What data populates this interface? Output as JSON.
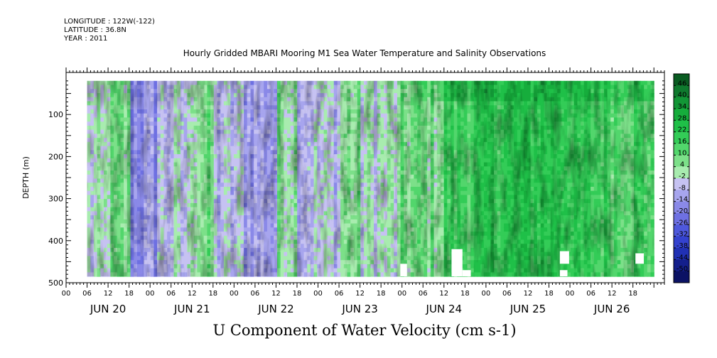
{
  "header": {
    "longitude": "LONGITUDE : 122W(-122)",
    "latitude": "LATITUDE : 36.8N",
    "year": "YEAR : 2011",
    "title": "Hourly Gridded MBARI Mooring M1 Sea Water Temperature and Salinity Observations"
  },
  "chart_data": {
    "type": "heatmap",
    "title": "U Component of Water Velocity (cm s-1)",
    "ylabel": "DEPTH (m)",
    "xlabel": "",
    "ylim": [
      500,
      0
    ],
    "y_ticks": [
      "100",
      "200",
      "300",
      "400",
      "500"
    ],
    "x_hour_ticks": [
      "00",
      "06",
      "12",
      "18",
      "00",
      "06",
      "12",
      "18",
      "00",
      "06",
      "12",
      "18",
      "00",
      "06",
      "12",
      "18",
      "00",
      "06",
      "12",
      "18",
      "00",
      "06",
      "12",
      "18",
      "00",
      "06",
      "12",
      "18"
    ],
    "x_day_labels": [
      "JUN 20",
      "JUN 21",
      "JUN 22",
      "JUN 23",
      "JUN 24",
      "JUN 25",
      "JUN 26"
    ],
    "colorbar_labels": [
      "46",
      "40",
      "34",
      "28",
      "22",
      "16",
      "10",
      "4",
      "-2",
      "-8",
      "-14",
      "-20",
      "-26",
      "-32",
      "-38",
      "-44",
      "-50"
    ],
    "colorbar_colors": [
      "#0a5c22",
      "#0f7a2e",
      "#129636",
      "#16ad3c",
      "#1fc048",
      "#33cc57",
      "#52d66c",
      "#7ce089",
      "#a8ecaf",
      "#c6c2f2",
      "#a7a5ee",
      "#8a89e8",
      "#6e70e2",
      "#4e58dc",
      "#3442cf",
      "#2030b4",
      "#141f8c",
      "#0b1264"
    ],
    "data_range_days": [
      19.75,
      26.5
    ],
    "depth_range_m": [
      20,
      485
    ],
    "day_band_means": [
      {
        "start_day": 19.75,
        "end_day": 20.0,
        "mean_u": -6
      },
      {
        "start_day": 20.0,
        "end_day": 20.25,
        "mean_u": 2
      },
      {
        "start_day": 20.25,
        "end_day": 20.6,
        "mean_u": -18
      },
      {
        "start_day": 20.6,
        "end_day": 21.0,
        "mean_u": -8
      },
      {
        "start_day": 21.0,
        "end_day": 21.25,
        "mean_u": 3
      },
      {
        "start_day": 21.25,
        "end_day": 21.6,
        "mean_u": -10
      },
      {
        "start_day": 21.6,
        "end_day": 22.0,
        "mean_u": -14
      },
      {
        "start_day": 22.0,
        "end_day": 22.25,
        "mean_u": 2
      },
      {
        "start_day": 22.25,
        "end_day": 22.75,
        "mean_u": -8
      },
      {
        "start_day": 22.75,
        "end_day": 23.0,
        "mean_u": 2
      },
      {
        "start_day": 23.0,
        "end_day": 23.5,
        "mean_u": -4
      },
      {
        "start_day": 23.5,
        "end_day": 24.0,
        "mean_u": 4
      },
      {
        "start_day": 24.0,
        "end_day": 24.5,
        "mean_u": 14
      },
      {
        "start_day": 24.5,
        "end_day": 25.0,
        "mean_u": 18
      },
      {
        "start_day": 25.0,
        "end_day": 25.5,
        "mean_u": 20
      },
      {
        "start_day": 25.5,
        "end_day": 26.0,
        "mean_u": 14
      },
      {
        "start_day": 26.0,
        "end_day": 26.5,
        "mean_u": 12
      }
    ]
  }
}
